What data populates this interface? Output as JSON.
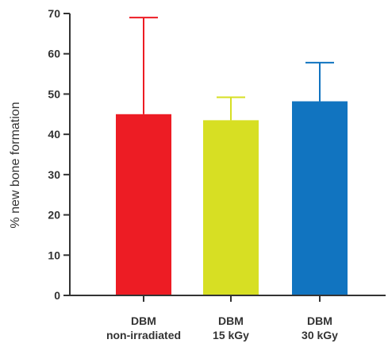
{
  "chart_data": {
    "type": "bar",
    "title": "",
    "xlabel": "",
    "ylabel": "% new bone formation",
    "ylim": [
      0,
      70
    ],
    "yticks": [
      0,
      10,
      20,
      30,
      40,
      50,
      60,
      70
    ],
    "grid": false,
    "error_bars": "upper only",
    "categories": [
      {
        "line1": "DBM",
        "line2": "non-irradiated"
      },
      {
        "line1": "DBM",
        "line2": "15 kGy"
      },
      {
        "line1": "DBM",
        "line2": "30 kGy"
      }
    ],
    "values": [
      45,
      43.5,
      48.2
    ],
    "error_upper": [
      69,
      49.2,
      57.8
    ],
    "colors": [
      "#ed1c24",
      "#d7df23",
      "#1174c0"
    ],
    "axis_color": "#333333"
  }
}
